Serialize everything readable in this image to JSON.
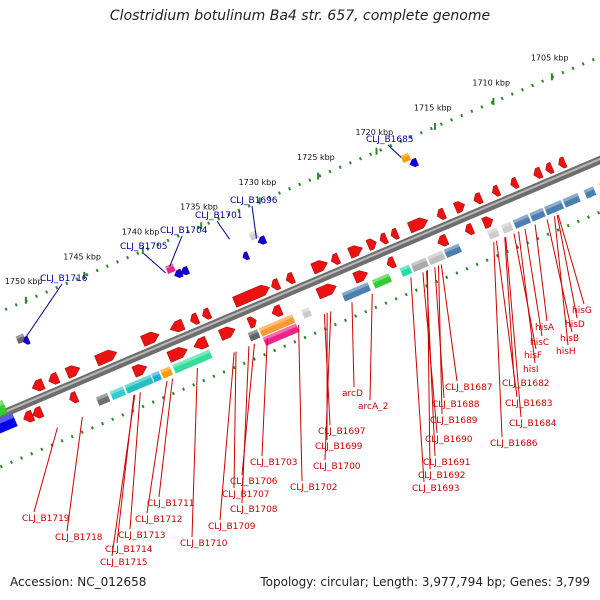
{
  "title": "Clostridium botulinum Ba4 str. 657, complete genome",
  "accession": "Accession: NC_012658",
  "summary": "Topology: circular; Length: 3,977,794 bp; Genes: 3,799",
  "colors": {
    "backbone": "#8a8a8a",
    "ring_dots": "#2a8a2a",
    "top_callout": "#000099",
    "bottom_callout": "#cc0000"
  },
  "kbp_ticks": [
    "1705 kbp",
    "1710 kbp",
    "1715 kbp",
    "1720 kbp",
    "1725 kbp",
    "1730 kbp",
    "1735 kbp",
    "1740 kbp",
    "1745 kbp",
    "1750 kbp"
  ],
  "top_callouts": [
    "CLJ_B1685",
    "CLJ_B1696",
    "CLJ_B1701",
    "CLJ_B1704",
    "CLJ_B1705",
    "CLJ_B1716"
  ],
  "bottom_callouts": [
    "hisG",
    "hisD",
    "hisA",
    "hisB",
    "hisC",
    "hisH",
    "hisF",
    "hisI",
    "CLJ_B1682",
    "CLJ_B1683",
    "CLJ_B1684",
    "CLJ_B1686",
    "CLJ_B1687",
    "CLJ_B1688",
    "CLJ_B1689",
    "CLJ_B1690",
    "CLJ_B1691",
    "CLJ_B1692",
    "CLJ_B1693",
    "arcD",
    "arcA_2",
    "CLJ_B1697",
    "CLJ_B1699",
    "CLJ_B1700",
    "CLJ_B1702",
    "CLJ_B1703",
    "CLJ_B1706",
    "CLJ_B1707",
    "CLJ_B1708",
    "CLJ_B1709",
    "CLJ_B1710",
    "CLJ_B1711",
    "CLJ_B1712",
    "CLJ_B1713",
    "CLJ_B1714",
    "CLJ_B1715",
    "CLJ_B1718",
    "CLJ_B1719"
  ]
}
